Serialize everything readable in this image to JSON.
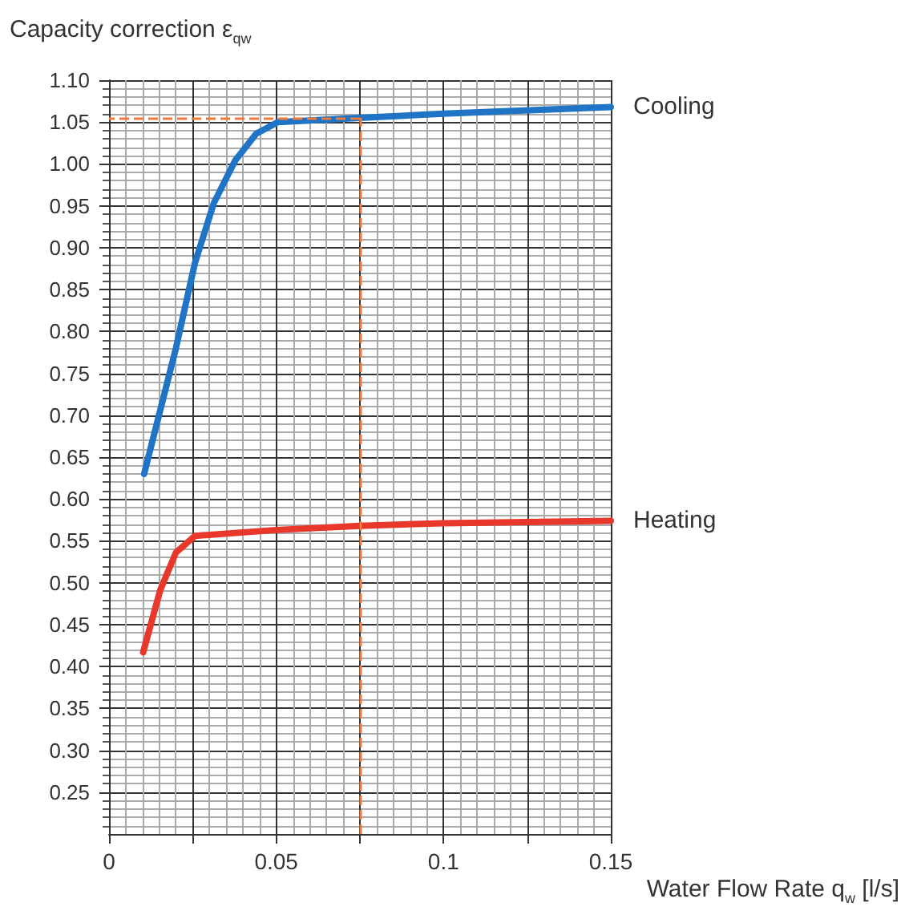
{
  "chart_data": {
    "type": "line",
    "xlabel": "Water Flow Rate q$_{w}$ [l/s]",
    "ylabel": "Capacity correction ε$_{qw}$",
    "xlim": [
      0,
      0.15
    ],
    "xticks": [
      0,
      {
        "value": 0.025,
        "label": null
      },
      0.05,
      {
        "value": 0.075,
        "label": null
      },
      0.1,
      {
        "value": 0.125,
        "label": null
      },
      0.15
    ],
    "ylim": [
      0.2,
      1.1
    ],
    "yticks": [
      0.25,
      {
        "value": 0.3,
        "label": "0.30"
      },
      0.35,
      {
        "value": 0.4,
        "label": "0.40"
      },
      0.45,
      {
        "value": 0.5,
        "label": "0.50"
      },
      0.55,
      {
        "value": 0.6,
        "label": "0.60"
      },
      0.65,
      {
        "value": 0.7,
        "label": "0.70"
      },
      0.75,
      {
        "value": 0.8,
        "label": "0.80"
      },
      0.85,
      {
        "value": 0.9,
        "label": "0.90"
      },
      0.95,
      {
        "value": 1.0,
        "label": "1.00"
      },
      1.05,
      {
        "value": 1.1,
        "label": "1.10"
      }
    ],
    "grid": true,
    "marker": "none",
    "line_style": "solid",
    "series": [
      {
        "name": "Cooling",
        "color": "#1f74c6",
        "x": [
          0.0105,
          0.02,
          0.0257,
          0.0313,
          0.0377,
          0.044,
          0.0505,
          0.06,
          0.075,
          0.1,
          0.15
        ],
        "values": [
          0.63,
          0.78,
          0.882,
          0.953,
          1.004,
          1.036,
          1.05,
          1.052,
          1.055,
          1.06,
          1.068
        ]
      },
      {
        "name": "Heating",
        "color": "#e8372b",
        "x": [
          0.0102,
          0.0153,
          0.02,
          0.0257,
          0.05,
          0.075,
          0.1,
          0.15
        ],
        "values": [
          0.417,
          0.491,
          0.536,
          0.556,
          0.563,
          0.568,
          0.571,
          0.574
        ]
      }
    ],
    "ref_lines": [
      {
        "axis": "x",
        "value": 0.075,
        "color": "#f07a3a",
        "line_style": "dashed"
      },
      {
        "axis": "y",
        "value": 1.055,
        "color": "#f07a3a",
        "line_style": "dashed"
      }
    ]
  }
}
